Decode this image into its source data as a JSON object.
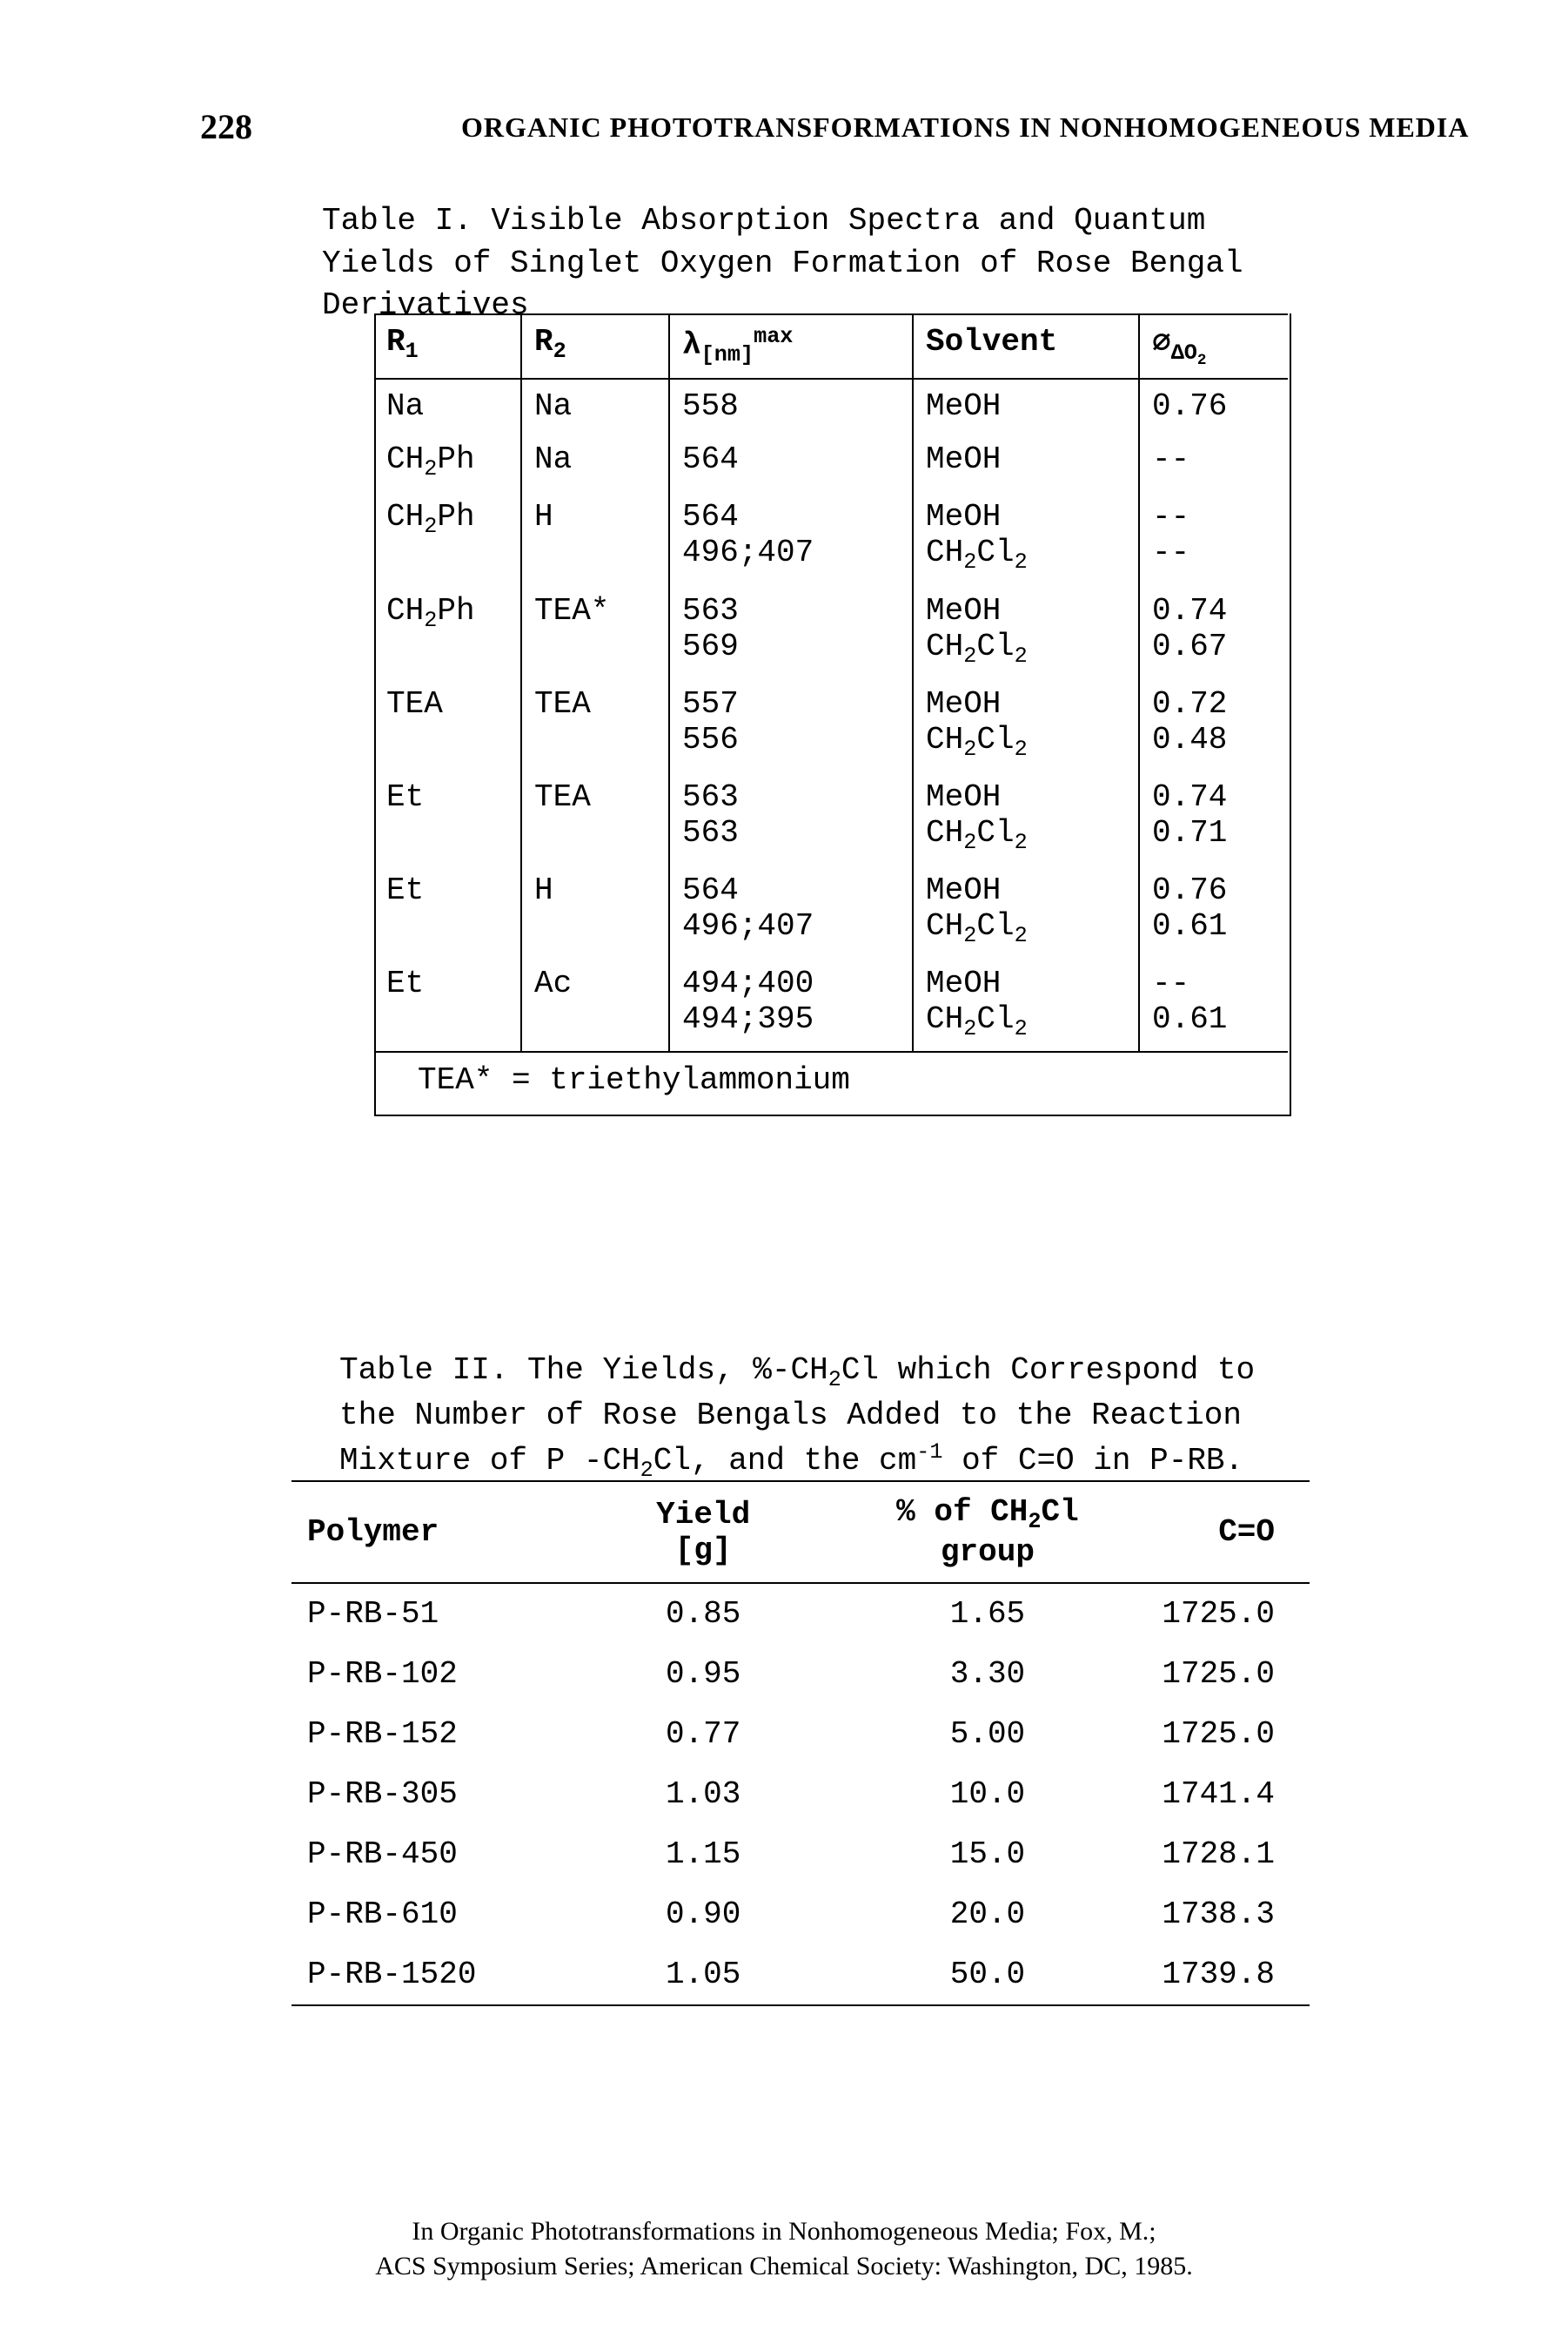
{
  "page_number": "228",
  "running_header": "ORGANIC PHOTOTRANSFORMATIONS IN NONHOMOGENEOUS MEDIA",
  "table1": {
    "title": "Table I. Visible Absorption Spectra and Quantum Yields of Singlet Oxygen Formation of Rose Bengal Derivatives",
    "columns": {
      "r1_html": "R<sub>1</sub>",
      "r2_html": "R<sub>2</sub>",
      "lambda_html": "λ<sub>[nm]</sub><sup>max</sup>",
      "solvent": "Solvent",
      "phi_html": "∅<sub>ΔO<sub>2</sub></sub>"
    },
    "rows": [
      {
        "r1_html": "Na",
        "r2_html": "Na",
        "lambda": "558",
        "solvent_html": "MeOH",
        "phi": "0.76"
      },
      {
        "r1_html": "CH<sub>2</sub>Ph",
        "r2_html": "Na",
        "lambda": "564",
        "solvent_html": "MeOH",
        "phi": "--"
      },
      {
        "r1_html": "CH<sub>2</sub>Ph",
        "r2_html": "H",
        "lambda": "564<br>496;407",
        "solvent_html": "MeOH<br>CH<sub>2</sub>Cl<sub>2</sub>",
        "phi": "--<br>--"
      },
      {
        "r1_html": "CH<sub>2</sub>Ph",
        "r2_html": "TEA*",
        "lambda": "563<br>569",
        "solvent_html": "MeOH<br>CH<sub>2</sub>Cl<sub>2</sub>",
        "phi": "0.74<br>0.67"
      },
      {
        "r1_html": "TEA",
        "r2_html": "TEA",
        "lambda": "557<br>556",
        "solvent_html": "MeOH<br>CH<sub>2</sub>Cl<sub>2</sub>",
        "phi": "0.72<br>0.48"
      },
      {
        "r1_html": "Et",
        "r2_html": "TEA",
        "lambda": "563<br>563",
        "solvent_html": "MeOH<br>CH<sub>2</sub>Cl<sub>2</sub>",
        "phi": "0.74<br>0.71"
      },
      {
        "r1_html": "Et",
        "r2_html": "H",
        "lambda": "564<br>496;407",
        "solvent_html": "MeOH<br>CH<sub>2</sub>Cl<sub>2</sub>",
        "phi": "0.76<br>0.61"
      },
      {
        "r1_html": "Et",
        "r2_html": "Ac",
        "lambda": "494;400<br>494;395",
        "solvent_html": "MeOH<br>CH<sub>2</sub>Cl<sub>2</sub>",
        "phi": "--<br>0.61"
      }
    ],
    "footer": "TEA* = triethylammonium"
  },
  "table2": {
    "title_html": "Table II. The Yields, %-CH<sub>2</sub>Cl which Correspond to the Number of Rose Bengals Added to the Reaction Mixture of P -CH<sub>2</sub>Cl, and the cm<sup>-1</sup> of C=O in P-RB.",
    "columns": {
      "polymer": "Polymer",
      "yield_html": "Yield<br>[g]",
      "pct_html": "% of CH<sub>2</sub>Cl<br>group",
      "co": "C=O"
    },
    "rows": [
      {
        "polymer": "P-RB-51",
        "yield": "0.85",
        "pct": "1.65",
        "co": "1725.0"
      },
      {
        "polymer": "P-RB-102",
        "yield": "0.95",
        "pct": "3.30",
        "co": "1725.0"
      },
      {
        "polymer": "P-RB-152",
        "yield": "0.77",
        "pct": "5.00",
        "co": "1725.0"
      },
      {
        "polymer": "P-RB-305",
        "yield": "1.03",
        "pct": "10.0",
        "co": "1741.4"
      },
      {
        "polymer": "P-RB-450",
        "yield": "1.15",
        "pct": "15.0",
        "co": "1728.1"
      },
      {
        "polymer": "P-RB-610",
        "yield": "0.90",
        "pct": "20.0",
        "co": "1738.3"
      },
      {
        "polymer": "P-RB-1520",
        "yield": "1.05",
        "pct": "50.0",
        "co": "1739.8"
      }
    ]
  },
  "footer": {
    "line1": "In Organic Phototransformations in Nonhomogeneous Media; Fox, M.;",
    "line2": "ACS Symposium Series; American Chemical Society: Washington, DC, 1985."
  }
}
